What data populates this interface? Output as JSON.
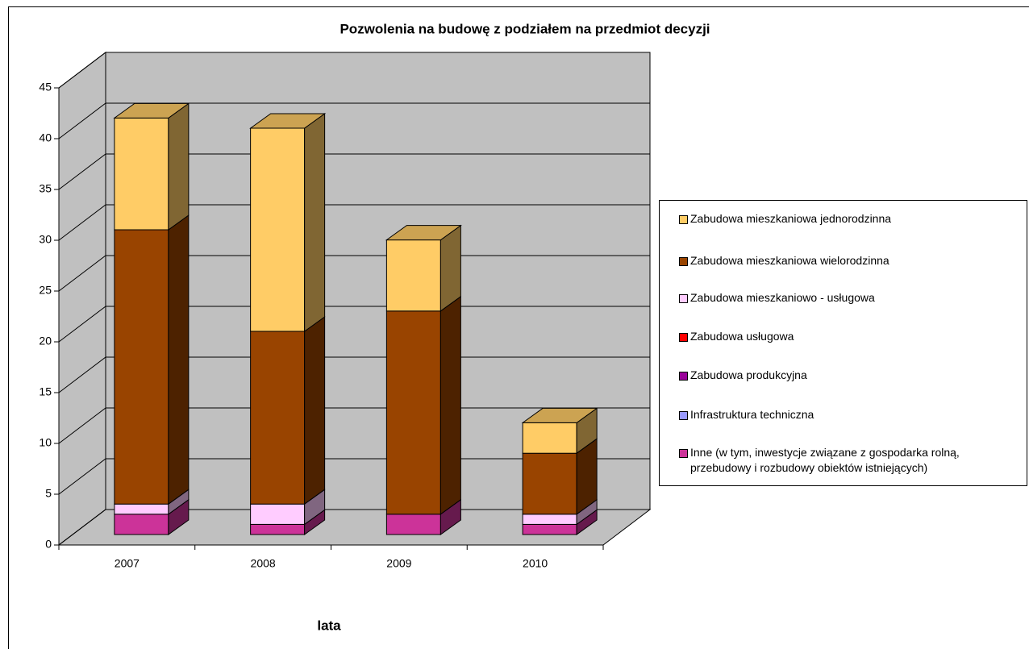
{
  "chart_data": {
    "type": "bar3d_stacked",
    "title": "Pozwolenia na budowę z podziałem na przedmiot decyzji",
    "x_label": "lata",
    "categories": [
      "2007",
      "2008",
      "2009",
      "2010"
    ],
    "ylim": [
      0,
      45
    ],
    "yticks": [
      0,
      5,
      10,
      15,
      20,
      25,
      30,
      35,
      40,
      45
    ],
    "grid": true,
    "legend": "right",
    "series": [
      {
        "name": "Inne (w tym, inwestycje związane z gospodarka rolną, przebudowy i rozbudowy obiektów istniejących)",
        "color": "#cc3399",
        "values": [
          2,
          1,
          2,
          1
        ]
      },
      {
        "name": "Infrastruktura techniczna",
        "color": "#9999ff",
        "values": [
          0,
          0,
          0,
          0
        ]
      },
      {
        "name": "Zabudowa produkcyjna",
        "color": "#990099",
        "values": [
          0,
          0,
          0,
          0
        ]
      },
      {
        "name": "Zabudowa usługowa",
        "color": "#ff0000",
        "values": [
          0,
          0,
          0,
          0
        ]
      },
      {
        "name": "Zabudowa mieszkaniowo - usługowa",
        "color": "#ffccff",
        "values": [
          1,
          2,
          0,
          1
        ]
      },
      {
        "name": "Zabudowa mieszkaniowa wielorodzinna",
        "color": "#994400",
        "values": [
          27,
          17,
          20,
          6
        ]
      },
      {
        "name": "Zabudowa mieszkaniowa jednorodzinna",
        "color": "#ffcc66",
        "values": [
          11,
          20,
          7,
          3
        ]
      }
    ]
  }
}
